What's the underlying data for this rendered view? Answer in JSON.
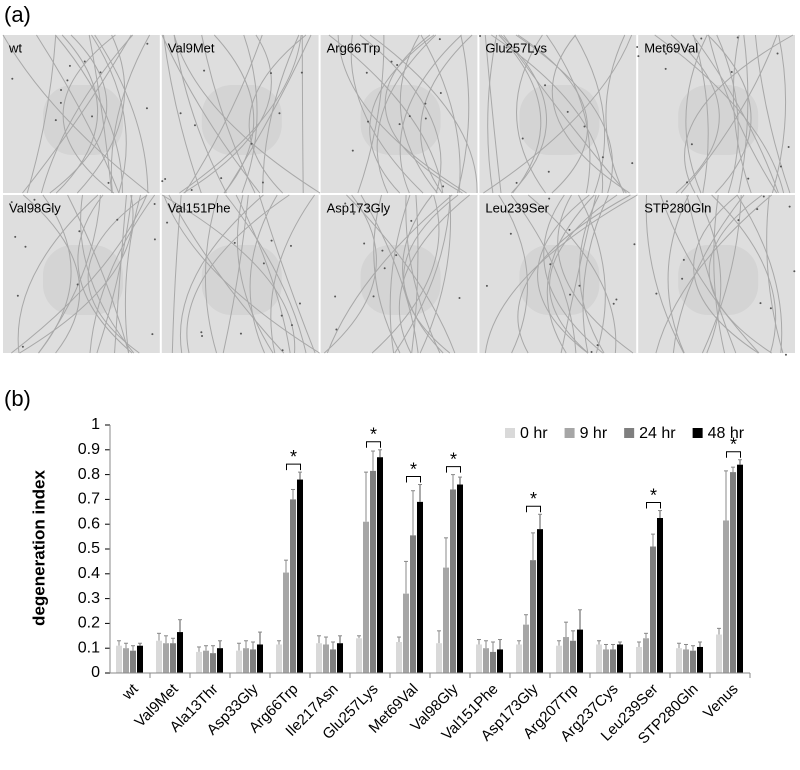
{
  "panel_a": {
    "label": "(a)",
    "tiles": [
      "wt",
      "Val9Met",
      "Arg66Trp",
      "Glu257Lys",
      "Met69Val",
      "Val98Gly",
      "Val151Phe",
      "Asp173Gly",
      "Leu239Ser",
      "STP280Gln"
    ]
  },
  "panel_b": {
    "label": "(b)"
  },
  "chart_data": {
    "type": "bar",
    "y_label": "degeneration index",
    "categories": [
      "wt",
      "Val9Met",
      "Ala13Thr",
      "Asp33Gly",
      "Arg66Trp",
      "Ile217Asn",
      "Glu257Lys",
      "Met69Val",
      "Val98Gly",
      "Val151Phe",
      "Asp173Gly",
      "Arg207Trp",
      "Arg237Cys",
      "Leu239Ser",
      "STP280Gln",
      "Venus"
    ],
    "series": [
      {
        "name": "0 hr",
        "color": "#d9d9d9",
        "values": [
          0.11,
          0.13,
          0.085,
          0.09,
          0.115,
          0.12,
          0.14,
          0.125,
          0.12,
          0.115,
          0.115,
          0.11,
          0.115,
          0.105,
          0.1,
          0.155
        ],
        "errors": [
          0.02,
          0.03,
          0.02,
          0.03,
          0.015,
          0.03,
          0.01,
          0.02,
          0.05,
          0.02,
          0.015,
          0.02,
          0.015,
          0.02,
          0.02,
          0.025
        ]
      },
      {
        "name": "9 hr",
        "color": "#a6a6a6",
        "values": [
          0.1,
          0.12,
          0.09,
          0.1,
          0.405,
          0.115,
          0.61,
          0.32,
          0.425,
          0.1,
          0.195,
          0.145,
          0.095,
          0.14,
          0.095,
          0.615
        ],
        "errors": [
          0.02,
          0.03,
          0.02,
          0.03,
          0.05,
          0.03,
          0.2,
          0.13,
          0.12,
          0.03,
          0.04,
          0.06,
          0.02,
          0.02,
          0.02,
          0.2
        ]
      },
      {
        "name": "24 hr",
        "color": "#7f7f7f",
        "values": [
          0.09,
          0.12,
          0.08,
          0.095,
          0.7,
          0.095,
          0.815,
          0.555,
          0.74,
          0.085,
          0.455,
          0.13,
          0.095,
          0.51,
          0.09,
          0.81
        ],
        "errors": [
          0.02,
          0.02,
          0.03,
          0.03,
          0.04,
          0.03,
          0.08,
          0.18,
          0.06,
          0.04,
          0.11,
          0.04,
          0.02,
          0.05,
          0.02,
          0.02
        ]
      },
      {
        "name": "48 hr",
        "color": "#000000",
        "values": [
          0.11,
          0.165,
          0.1,
          0.115,
          0.78,
          0.12,
          0.87,
          0.69,
          0.76,
          0.095,
          0.58,
          0.175,
          0.115,
          0.625,
          0.105,
          0.84
        ],
        "errors": [
          0.01,
          0.05,
          0.03,
          0.05,
          0.03,
          0.03,
          0.03,
          0.07,
          0.03,
          0.04,
          0.06,
          0.08,
          0.01,
          0.03,
          0.02,
          0.02
        ]
      }
    ],
    "significance": [
      {
        "category": "Arg66Trp",
        "label": "*"
      },
      {
        "category": "Glu257Lys",
        "label": "*"
      },
      {
        "category": "Met69Val",
        "label": "*"
      },
      {
        "category": "Val98Gly",
        "label": "*"
      },
      {
        "category": "Asp173Gly",
        "label": "*"
      },
      {
        "category": "Leu239Ser",
        "label": "*"
      },
      {
        "category": "Venus",
        "label": "*"
      }
    ],
    "ylim": [
      0,
      1
    ],
    "yticks": [
      0,
      0.1,
      0.2,
      0.3,
      0.4,
      0.5,
      0.6,
      0.7,
      0.8,
      0.9,
      1
    ],
    "legend": "top-right"
  }
}
